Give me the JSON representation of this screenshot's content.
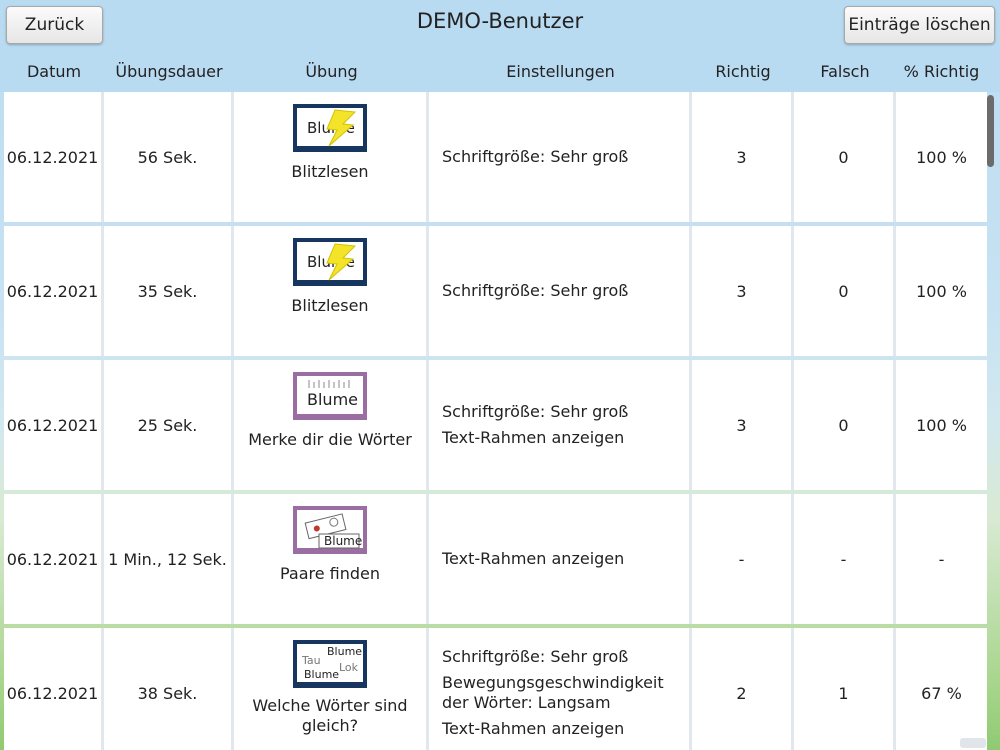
{
  "header": {
    "back_label": "Zurück",
    "title": "DEMO-Benutzer",
    "clear_label": "Einträge löschen"
  },
  "columns": {
    "date": "Datum",
    "duration": "Übungsdauer",
    "exercise": "Übung",
    "settings": "Einstellungen",
    "correct": "Richtig",
    "wrong": "Falsch",
    "percent": "% Richtig"
  },
  "icon_words": {
    "blitz": "Blume",
    "merke": "Blume",
    "paare": "Blume",
    "gleich_1": "Blume",
    "gleich_2": "Tau",
    "gleich_3": "Lok",
    "gleich_4": "Blume"
  },
  "rows": [
    {
      "date": "06.12.2021",
      "duration": "56 Sek.",
      "exercise": "Blitzlesen",
      "icon": "blitz-icon",
      "settings": [
        "Schriftgröße: Sehr groß"
      ],
      "correct": "3",
      "wrong": "0",
      "percent": "100 %"
    },
    {
      "date": "06.12.2021",
      "duration": "35 Sek.",
      "exercise": "Blitzlesen",
      "icon": "blitz-icon",
      "settings": [
        "Schriftgröße: Sehr groß"
      ],
      "correct": "3",
      "wrong": "0",
      "percent": "100 %"
    },
    {
      "date": "06.12.2021",
      "duration": "25 Sek.",
      "exercise": "Merke dir die Wörter",
      "icon": "memory-icon",
      "settings": [
        "Schriftgröße: Sehr groß",
        "Text-Rahmen anzeigen"
      ],
      "correct": "3",
      "wrong": "0",
      "percent": "100 %"
    },
    {
      "date": "06.12.2021",
      "duration": "1 Min., 12 Sek.",
      "exercise": "Paare finden",
      "icon": "pairs-icon",
      "settings": [
        "Text-Rahmen anzeigen"
      ],
      "correct": "-",
      "wrong": "-",
      "percent": "-"
    },
    {
      "date": "06.12.2021",
      "duration": "38 Sek.",
      "exercise_line1": "Welche Wörter sind",
      "exercise_line2": "gleich?",
      "icon": "same-words-icon",
      "settings": [
        "Schriftgröße: Sehr groß",
        "Bewegungsgeschwindigkeit",
        "der Wörter: Langsam",
        "Text-Rahmen anzeigen"
      ],
      "correct": "2",
      "wrong": "1",
      "percent": "67 %"
    }
  ],
  "colors": {
    "header_bg": "#b9dbf1",
    "icon_blue": "#17365f",
    "icon_purple": "#9a6ea3",
    "bolt_yellow": "#f3e329"
  }
}
